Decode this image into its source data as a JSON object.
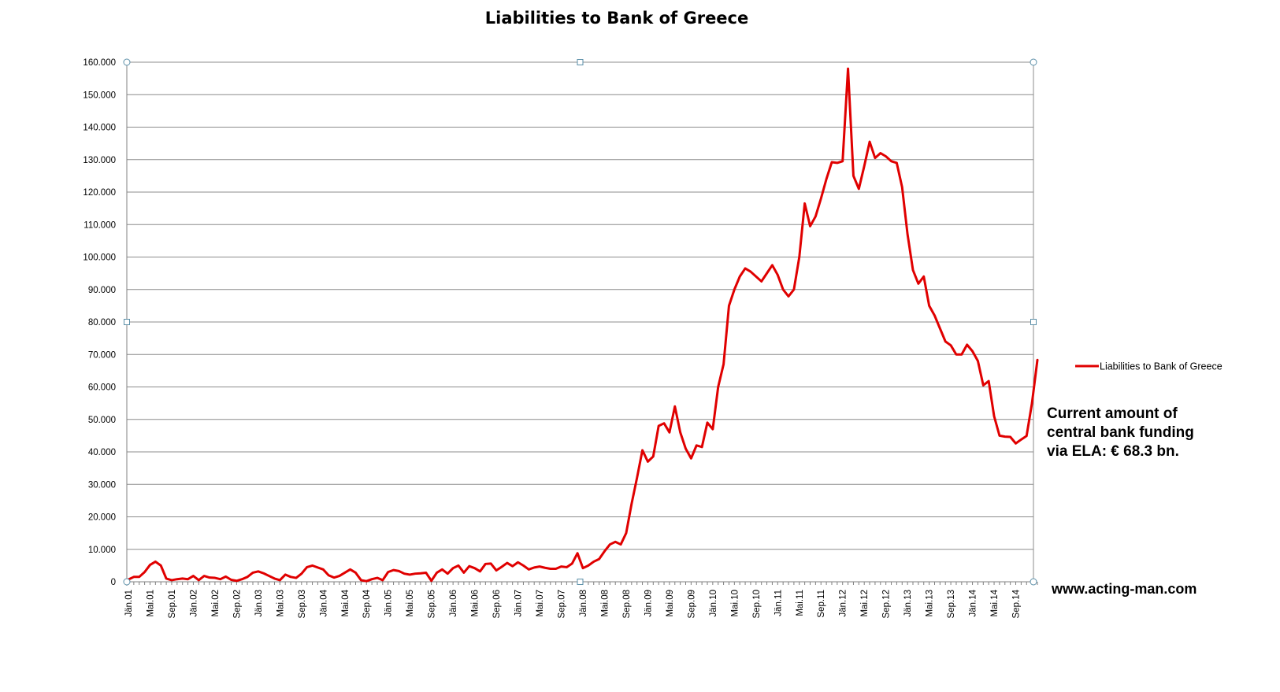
{
  "chart_data": {
    "type": "line",
    "title": "Liabilities to Bank of Greece",
    "ylim": [
      0,
      160000
    ],
    "yticks": [
      0,
      10000,
      20000,
      30000,
      40000,
      50000,
      60000,
      70000,
      80000,
      90000,
      100000,
      110000,
      120000,
      130000,
      140000,
      150000,
      160000
    ],
    "ytick_labels": [
      "0",
      "10.000",
      "20.000",
      "30.000",
      "40.000",
      "50.000",
      "60.000",
      "70.000",
      "80.000",
      "90.000",
      "100.000",
      "110.000",
      "120.000",
      "130.000",
      "140.000",
      "150.000",
      "160.000"
    ],
    "x_labels": [
      "Jän.01",
      "Mai.01",
      "Sep.01",
      "Jän.02",
      "Mai.02",
      "Sep.02",
      "Jän.03",
      "Mai.03",
      "Sep.03",
      "Jän.04",
      "Mai.04",
      "Sep.04",
      "Jän.05",
      "Mai.05",
      "Sep.05",
      "Jän.06",
      "Mai.06",
      "Sep.06",
      "Jän.07",
      "Mai.07",
      "Sep.07",
      "Jän.08",
      "Mai.08",
      "Sep.08",
      "Jän.09",
      "Mai.09",
      "Sep.09",
      "Jän.10",
      "Mai.10",
      "Sep.10",
      "Jän.11",
      "Mai.11",
      "Sep.11",
      "Jän.12",
      "Mai.12",
      "Sep.12",
      "Jän.13",
      "Mai.13",
      "Sep.13",
      "Jän.14",
      "Mai.14",
      "Sep.14"
    ],
    "grid": true,
    "legend_position": "right",
    "series": [
      {
        "name": "Liabilities to Bank of Greece",
        "color": "#e00000",
        "values": [
          700,
          1500,
          1500,
          3000,
          5200,
          6200,
          5000,
          1000,
          500,
          800,
          1000,
          800,
          1800,
          500,
          1800,
          1300,
          1200,
          800,
          1600,
          600,
          300,
          800,
          1500,
          2800,
          3200,
          2600,
          1800,
          1000,
          500,
          2200,
          1500,
          1200,
          2500,
          4500,
          5000,
          4400,
          3800,
          2000,
          1300,
          1800,
          2800,
          3800,
          2800,
          500,
          200,
          800,
          1200,
          500,
          3000,
          3600,
          3300,
          2500,
          2200,
          2500,
          2600,
          2800,
          300,
          2800,
          3800,
          2500,
          4200,
          5000,
          2800,
          4800,
          4200,
          3200,
          5500,
          5600,
          3500,
          4600,
          5800,
          4800,
          6000,
          5000,
          3800,
          4400,
          4700,
          4300,
          4000,
          4000,
          4700,
          4500,
          5600,
          8800,
          4200,
          5000,
          6200,
          7000,
          9400,
          11500,
          12300,
          11500,
          15000,
          24000,
          32000,
          40500,
          37000,
          38600,
          48000,
          48800,
          46000,
          54000,
          46000,
          41000,
          38000,
          42000,
          41500,
          49000,
          47000,
          60000,
          67000,
          85000,
          90000,
          94000,
          96500,
          95500,
          94000,
          92500,
          95000,
          97500,
          94500,
          90000,
          87900,
          90000,
          100000,
          116500,
          109500,
          112500,
          118000,
          124000,
          129200,
          129000,
          129500,
          158000,
          125000,
          121000,
          128000,
          135500,
          130500,
          132000,
          131000,
          129500,
          129000,
          121500,
          107000,
          96000,
          91800,
          94000,
          85000,
          82000,
          78000,
          74000,
          72800,
          70000,
          70000,
          73000,
          71000,
          68000,
          60500,
          61800,
          51000,
          45000,
          44700,
          44600,
          42600,
          43800,
          44900,
          55000,
          68300
        ]
      }
    ],
    "annotation": [
      "Current amount of",
      "central bank funding",
      "via ELA: € 68.3 bn."
    ],
    "source_label": "www.acting-man.com"
  }
}
